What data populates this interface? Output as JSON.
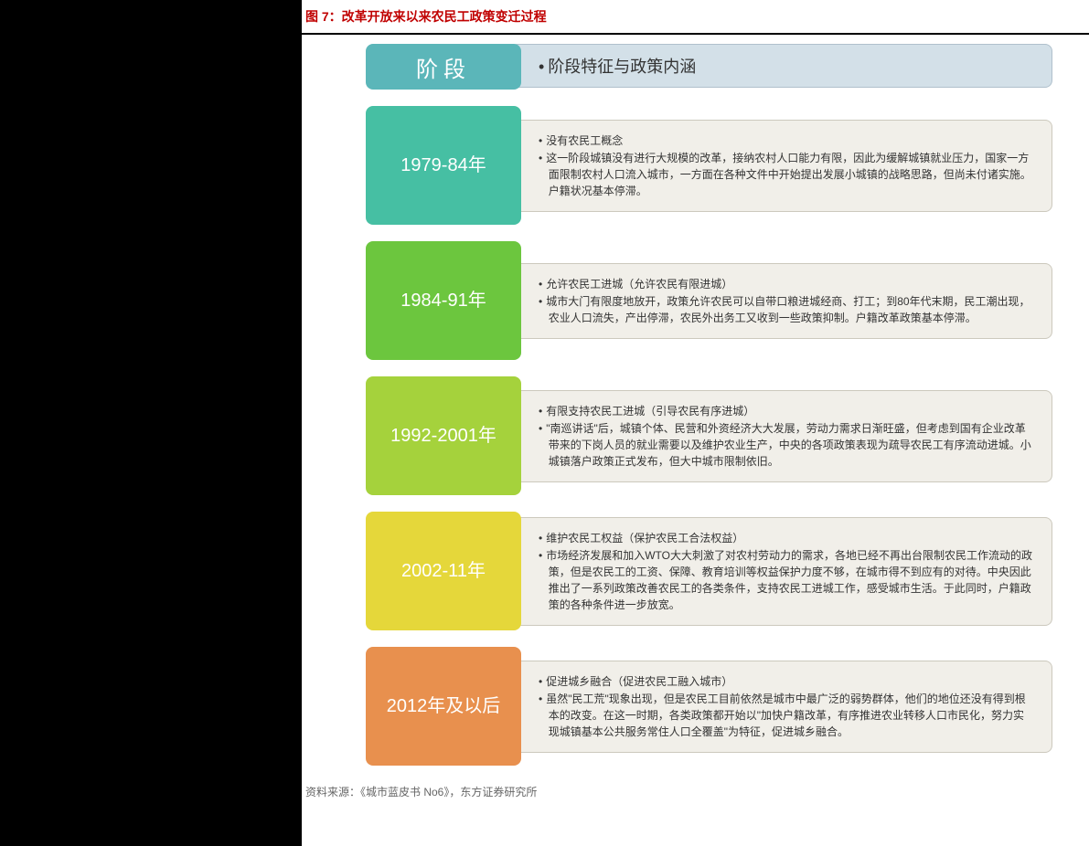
{
  "title": "图 7：改革开放来以来农民工政策变迁过程",
  "header": {
    "label": "阶段",
    "desc": "阶段特征与政策内涵",
    "box_color": "#5bb6b9",
    "desc_bg": "#d3e0e8",
    "desc_border": "#b0c0cc"
  },
  "stages": [
    {
      "period": "1979-84年",
      "box_color": "#46bfa3",
      "bullets": [
        "没有农民工概念",
        "这一阶段城镇没有进行大规模的改革，接纳农村人口能力有限，因此为缓解城镇就业压力，国家一方面限制农村人口流入城市，一方面在各种文件中开始提出发展小城镇的战略思路，但尚未付诸实施。户籍状况基本停滞。"
      ]
    },
    {
      "period": "1984-91年",
      "box_color": "#6cc63e",
      "bullets": [
        "允许农民工进城（允许农民有限进城）",
        "城市大门有限度地放开，政策允许农民可以自带口粮进城经商、打工；到80年代末期，民工潮出现，农业人口流失，产出停滞，农民外出务工又收到一些政策抑制。户籍改革政策基本停滞。"
      ]
    },
    {
      "period": "1992-2001年",
      "box_color": "#a5d23c",
      "bullets": [
        "有限支持农民工进城（引导农民有序进城）",
        "\"南巡讲话\"后，城镇个体、民营和外资经济大大发展，劳动力需求日渐旺盛，但考虑到国有企业改革带来的下岗人员的就业需要以及维护农业生产，中央的各项政策表现为疏导农民工有序流动进城。小城镇落户政策正式发布，但大中城市限制依旧。"
      ]
    },
    {
      "period": "2002-11年",
      "box_color": "#e5d73a",
      "bullets": [
        "维护农民工权益（保护农民工合法权益）",
        "市场经济发展和加入WTO大大刺激了对农村劳动力的需求，各地已经不再出台限制农民工作流动的政策，但是农民工的工资、保障、教育培训等权益保护力度不够，在城市得不到应有的对待。中央因此推出了一系列政策改善农民工的各类条件，支持农民工进城工作，感受城市生活。于此同时，户籍政策的各种条件进一步放宽。"
      ]
    },
    {
      "period": "2012年及以后",
      "box_color": "#e8904e",
      "bullets": [
        "促进城乡融合（促进农民工融入城市）",
        "虽然\"民工荒\"现象出现，但是农民工目前依然是城市中最广泛的弱势群体，他们的地位还没有得到根本的改变。在这一时期，各类政策都开始以\"加快户籍改革，有序推进农业转移人口市民化，努力实现城镇基本公共服务常住人口全覆盖\"为特征，促进城乡融合。"
      ]
    }
  ],
  "stage_desc_bg": "rgba(238,236,229,0.85)",
  "stage_desc_border": "#ccc9bd",
  "source": "资料来源：《城市蓝皮书 No6》，东方证券研究所"
}
